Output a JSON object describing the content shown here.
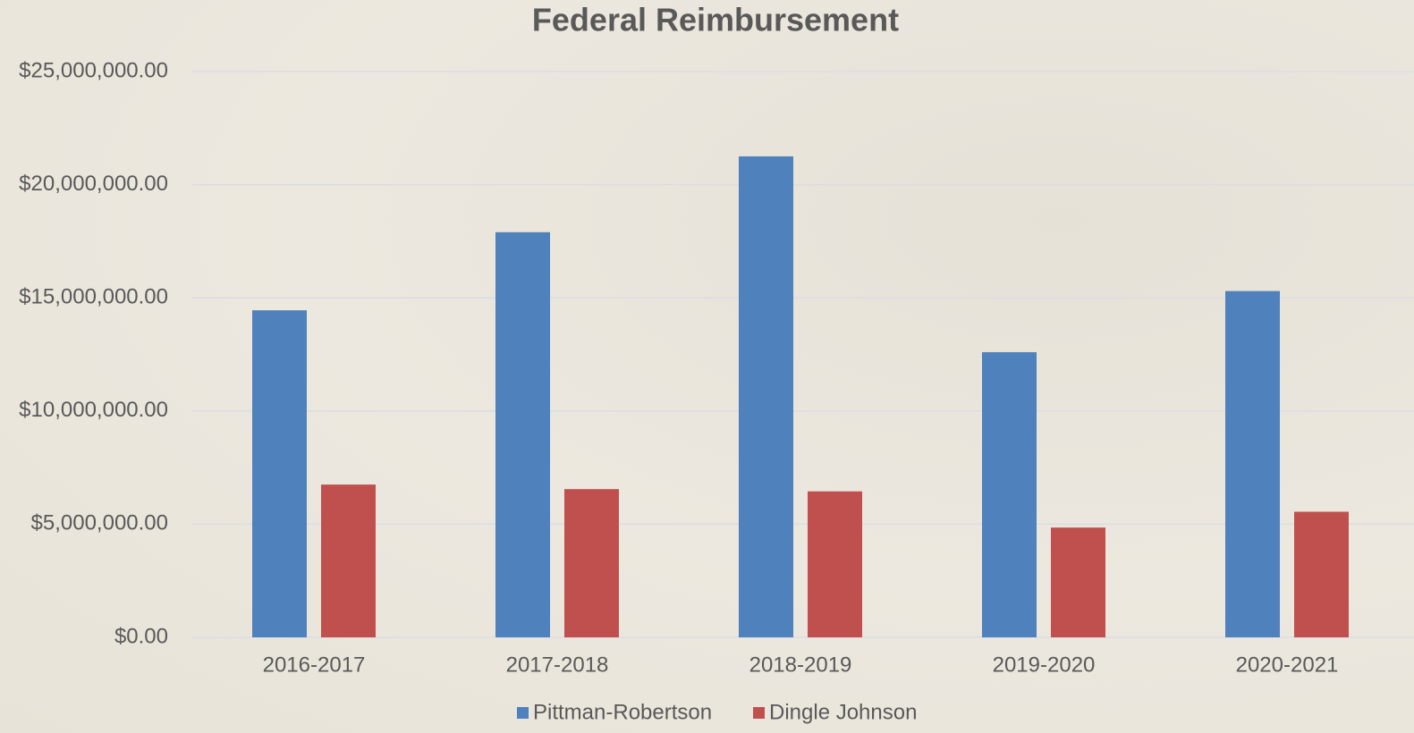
{
  "chart_data": {
    "type": "bar",
    "title": "Federal Reimbursement",
    "categories": [
      "2016-2017",
      "2017-2018",
      "2018-2019",
      "2019-2020",
      "2020-2021"
    ],
    "series": [
      {
        "name": "Pittman-Robertson",
        "color": "#4f81bd",
        "values": [
          14450000,
          17900000,
          21250000,
          12600000,
          15300000
        ]
      },
      {
        "name": "Dingle Johnson",
        "color": "#c0504d",
        "values": [
          6750000,
          6550000,
          6450000,
          4850000,
          5550000
        ]
      }
    ],
    "ylim": [
      0,
      25000000
    ],
    "yticks": [
      {
        "value": 0,
        "label": "$0.00"
      },
      {
        "value": 5000000,
        "label": "$5,000,000.00"
      },
      {
        "value": 10000000,
        "label": "$10,000,000.00"
      },
      {
        "value": 15000000,
        "label": "$15,000,000.00"
      },
      {
        "value": 20000000,
        "label": "$20,000,000.00"
      },
      {
        "value": 25000000,
        "label": "$25,000,000.00"
      }
    ],
    "grid": true,
    "legend": "bottom"
  }
}
